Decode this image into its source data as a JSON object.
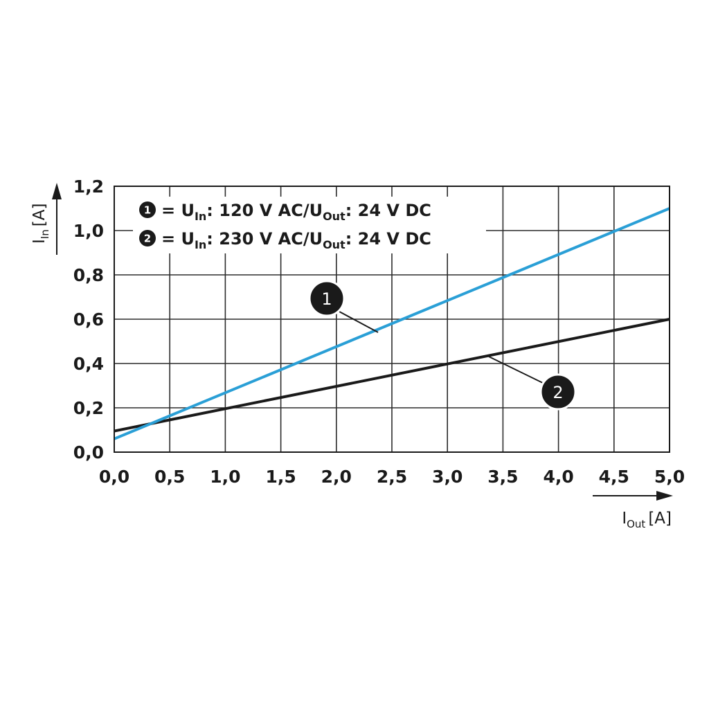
{
  "chart_data": {
    "type": "line",
    "xlabel": {
      "main": "I",
      "sub": "Out",
      "unit": "[A]"
    },
    "ylabel": {
      "main": "I",
      "sub": "In",
      "unit": "[A]"
    },
    "xlim": [
      0.0,
      5.0
    ],
    "ylim": [
      0.0,
      1.2
    ],
    "xticks": [
      "0,0",
      "0,5",
      "1,0",
      "1,5",
      "2,0",
      "2,5",
      "3,0",
      "3,5",
      "4,0",
      "4,5",
      "5,0"
    ],
    "yticks": [
      "0,0",
      "0,2",
      "0,4",
      "0,6",
      "0,8",
      "1,0",
      "1,2"
    ],
    "grid": true,
    "legend_position": "top-left",
    "series": [
      {
        "marker": "1",
        "color": "#2a9fd6",
        "legend": {
          "a": "= U",
          "a_sub": "In",
          "b": ": 120 V AC/U",
          "b_sub": "Out",
          "c": ": 24 V DC"
        },
        "x": [
          0.0,
          5.0
        ],
        "y": [
          0.06,
          1.1
        ]
      },
      {
        "marker": "2",
        "color": "#1a1a1a",
        "legend": {
          "a": "= U",
          "a_sub": "In",
          "b": ": 230 V AC/U",
          "b_sub": "Out",
          "c": ": 24 V DC"
        },
        "x": [
          0.0,
          5.0
        ],
        "y": [
          0.095,
          0.6
        ]
      }
    ]
  }
}
